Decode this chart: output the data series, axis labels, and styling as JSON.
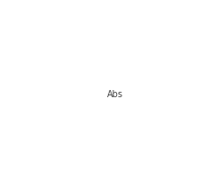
{
  "background": "#ffffff",
  "bond_color": "#000000",
  "H_color": "#8B6914",
  "abs_label": "Abs",
  "abs_box_color": "#000000",
  "abs_fill": "#ffffff",
  "fig_width": 2.3,
  "fig_height": 2.0,
  "dpi": 100
}
